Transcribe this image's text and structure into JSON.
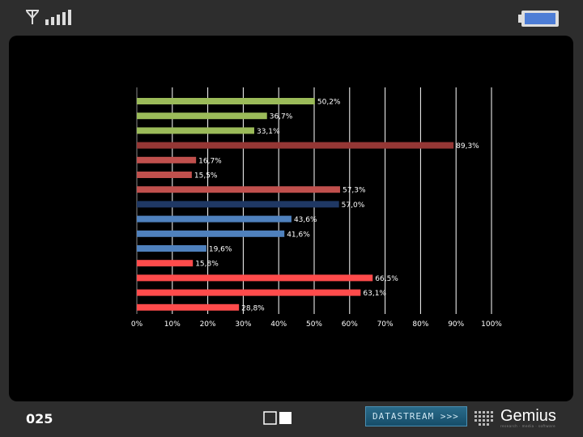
{
  "page_number": "025",
  "stream_button": {
    "label": "DATASTREAM >>>"
  },
  "logo": {
    "name": "Gemius",
    "tagline": "research · media · software"
  },
  "colors": {
    "green": "#9bbb59",
    "dark_red": "#953735",
    "red": "#c0504d",
    "navy": "#1f3864",
    "blue": "#4f81bd",
    "bright_red": "#ff4b4b",
    "label": "#ffffff",
    "grid": "#ffffff"
  },
  "chart_data": {
    "type": "bar",
    "orientation": "horizontal",
    "x_axis": {
      "min": 0,
      "max": 100,
      "step": 10,
      "tick_labels": [
        "0%",
        "10%",
        "20%",
        "30%",
        "40%",
        "50%",
        "60%",
        "70%",
        "80%",
        "90%",
        "100%"
      ]
    },
    "grid": true,
    "bars": [
      {
        "value": 50.2,
        "label": "50,2%",
        "color": "green"
      },
      {
        "value": 36.7,
        "label": "36,7%",
        "color": "green"
      },
      {
        "value": 33.1,
        "label": "33,1%",
        "color": "green"
      },
      {
        "value": 89.3,
        "label": "89,3%",
        "color": "dark_red"
      },
      {
        "value": 16.7,
        "label": "16,7%",
        "color": "red"
      },
      {
        "value": 15.5,
        "label": "15,5%",
        "color": "red"
      },
      {
        "value": 57.3,
        "label": "57,3%",
        "color": "red"
      },
      {
        "value": 57.0,
        "label": "57,0%",
        "color": "navy"
      },
      {
        "value": 43.6,
        "label": "43,6%",
        "color": "blue"
      },
      {
        "value": 41.6,
        "label": "41,6%",
        "color": "blue"
      },
      {
        "value": 19.6,
        "label": "19,6%",
        "color": "blue"
      },
      {
        "value": 15.8,
        "label": "15,8%",
        "color": "bright_red"
      },
      {
        "value": 66.5,
        "label": "66,5%",
        "color": "bright_red"
      },
      {
        "value": 63.1,
        "label": "63,1%",
        "color": "bright_red"
      },
      {
        "value": 28.8,
        "label": "28,8%",
        "color": "bright_red"
      }
    ]
  }
}
